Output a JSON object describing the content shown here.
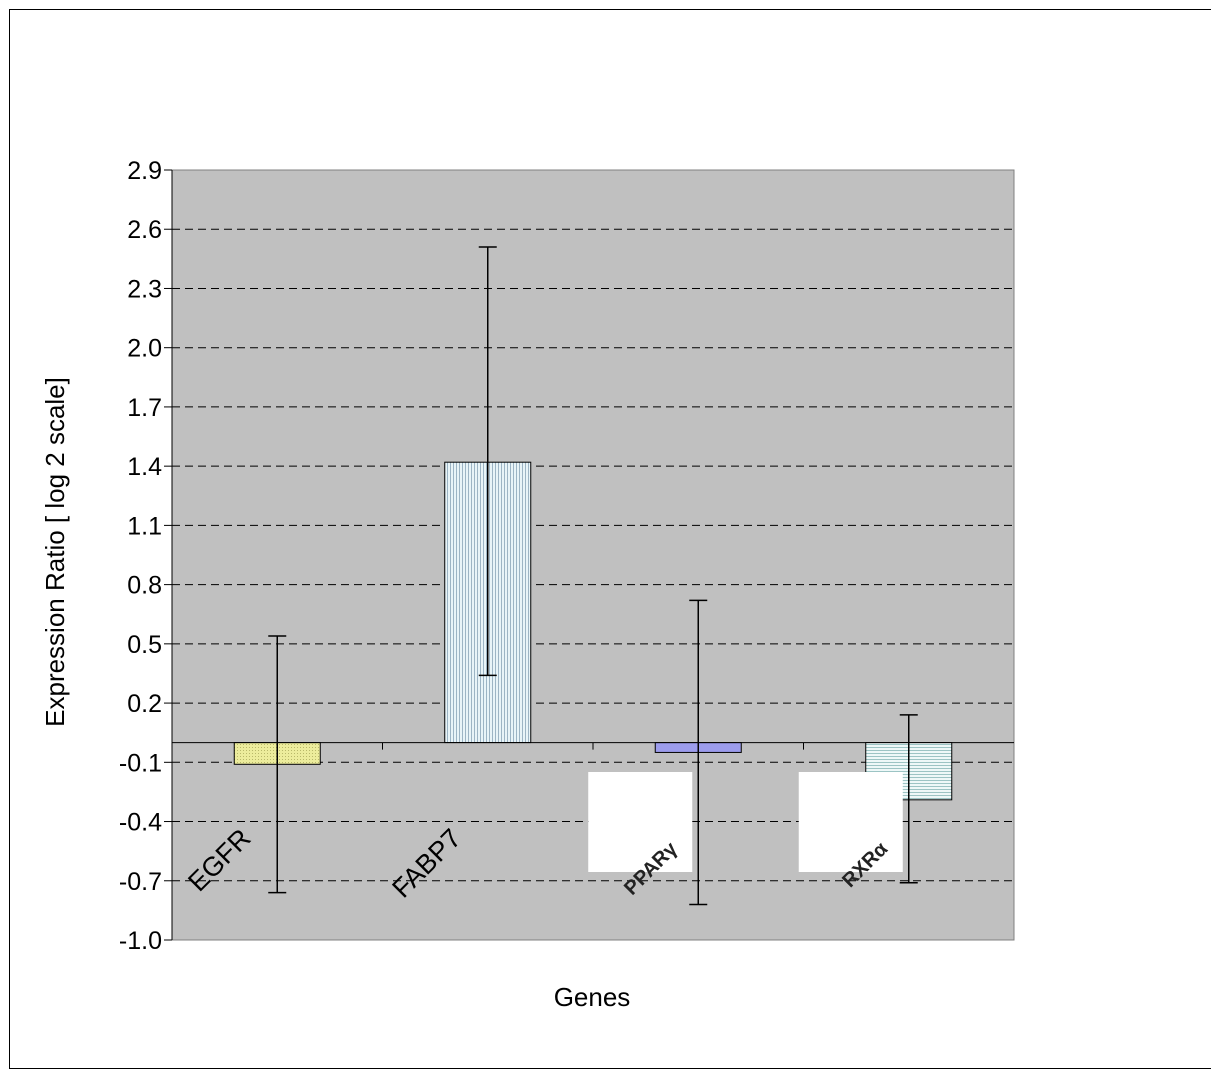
{
  "chart_data": {
    "type": "bar",
    "title": "",
    "xlabel": "Genes",
    "ylabel": "Expression Ratio [ log 2 scale]",
    "ylim": [
      -1.0,
      2.9
    ],
    "yticks": [
      "2.9",
      "2.6",
      "2.3",
      "2.0",
      "1.7",
      "1.4",
      "1.1",
      "0.8",
      "0.5",
      "0.2",
      "-0.1",
      "-0.4",
      "-0.7",
      "-1.0"
    ],
    "categories": [
      "EGFR",
      "FABP7",
      "PPARγ",
      "RXRα"
    ],
    "values": [
      -0.11,
      1.42,
      -0.05,
      -0.29
    ],
    "error_low": [
      -0.76,
      0.34,
      -0.82,
      -0.71
    ],
    "error_high": [
      0.54,
      2.51,
      0.72,
      0.14
    ],
    "grid": "horizontal dashed",
    "legend": "none",
    "colors": {
      "plot_background": "#c0c0c0",
      "egfr": "#ecec9c",
      "fabp7": "#d8ecf4",
      "pparg": "#9c9cec",
      "rxra": "#e2f4f4"
    }
  }
}
